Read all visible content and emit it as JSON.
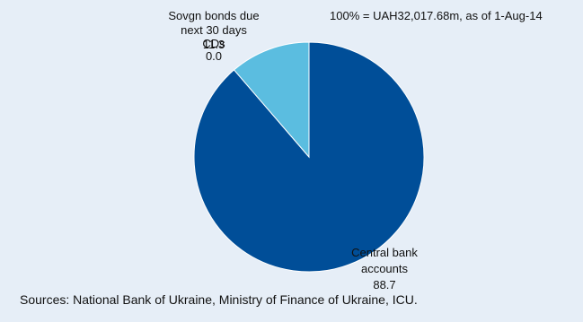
{
  "chart_data": {
    "type": "pie",
    "note": "100% = UAH32,017.68m,   as of 1-Aug-14",
    "slices": [
      {
        "label_lines": [
          "Central bank",
          "accounts"
        ],
        "value": 88.7,
        "value_text": "88.7",
        "color": "#004e98"
      },
      {
        "label_lines": [
          "Sovgn bonds  due",
          "next 30 days"
        ],
        "value": 11.3,
        "value_text": "11.3",
        "color": "#5bbde0"
      },
      {
        "label_lines": [
          "CDs"
        ],
        "value": 0.0,
        "value_text": "0.0",
        "color": "#2f8bd0"
      }
    ]
  },
  "footer": {
    "source": "Sources: National Bank of Ukraine, Ministry of Finance of Ukraine, ICU."
  }
}
